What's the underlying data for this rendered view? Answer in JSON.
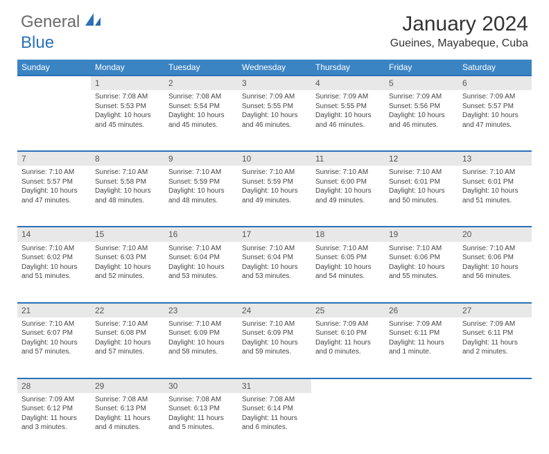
{
  "logo": {
    "general": "General",
    "blue": "Blue"
  },
  "title": "January 2024",
  "location": "Gueines, Mayabeque, Cuba",
  "weekdays": [
    "Sunday",
    "Monday",
    "Tuesday",
    "Wednesday",
    "Thursday",
    "Friday",
    "Saturday"
  ],
  "colors": {
    "header_bg": "#3b84c4",
    "daynum_bg": "#e8e8e8",
    "rule": "#2a71b8",
    "logo_gray": "#6a6a6a",
    "logo_blue": "#2a71b8"
  },
  "weeks": [
    [
      {
        "num": "",
        "sunrise": "",
        "sunset": "",
        "daylight": ""
      },
      {
        "num": "1",
        "sunrise": "Sunrise: 7:08 AM",
        "sunset": "Sunset: 5:53 PM",
        "daylight": "Daylight: 10 hours and 45 minutes."
      },
      {
        "num": "2",
        "sunrise": "Sunrise: 7:08 AM",
        "sunset": "Sunset: 5:54 PM",
        "daylight": "Daylight: 10 hours and 45 minutes."
      },
      {
        "num": "3",
        "sunrise": "Sunrise: 7:09 AM",
        "sunset": "Sunset: 5:55 PM",
        "daylight": "Daylight: 10 hours and 46 minutes."
      },
      {
        "num": "4",
        "sunrise": "Sunrise: 7:09 AM",
        "sunset": "Sunset: 5:55 PM",
        "daylight": "Daylight: 10 hours and 46 minutes."
      },
      {
        "num": "5",
        "sunrise": "Sunrise: 7:09 AM",
        "sunset": "Sunset: 5:56 PM",
        "daylight": "Daylight: 10 hours and 46 minutes."
      },
      {
        "num": "6",
        "sunrise": "Sunrise: 7:09 AM",
        "sunset": "Sunset: 5:57 PM",
        "daylight": "Daylight: 10 hours and 47 minutes."
      }
    ],
    [
      {
        "num": "7",
        "sunrise": "Sunrise: 7:10 AM",
        "sunset": "Sunset: 5:57 PM",
        "daylight": "Daylight: 10 hours and 47 minutes."
      },
      {
        "num": "8",
        "sunrise": "Sunrise: 7:10 AM",
        "sunset": "Sunset: 5:58 PM",
        "daylight": "Daylight: 10 hours and 48 minutes."
      },
      {
        "num": "9",
        "sunrise": "Sunrise: 7:10 AM",
        "sunset": "Sunset: 5:59 PM",
        "daylight": "Daylight: 10 hours and 48 minutes."
      },
      {
        "num": "10",
        "sunrise": "Sunrise: 7:10 AM",
        "sunset": "Sunset: 5:59 PM",
        "daylight": "Daylight: 10 hours and 49 minutes."
      },
      {
        "num": "11",
        "sunrise": "Sunrise: 7:10 AM",
        "sunset": "Sunset: 6:00 PM",
        "daylight": "Daylight: 10 hours and 49 minutes."
      },
      {
        "num": "12",
        "sunrise": "Sunrise: 7:10 AM",
        "sunset": "Sunset: 6:01 PM",
        "daylight": "Daylight: 10 hours and 50 minutes."
      },
      {
        "num": "13",
        "sunrise": "Sunrise: 7:10 AM",
        "sunset": "Sunset: 6:01 PM",
        "daylight": "Daylight: 10 hours and 51 minutes."
      }
    ],
    [
      {
        "num": "14",
        "sunrise": "Sunrise: 7:10 AM",
        "sunset": "Sunset: 6:02 PM",
        "daylight": "Daylight: 10 hours and 51 minutes."
      },
      {
        "num": "15",
        "sunrise": "Sunrise: 7:10 AM",
        "sunset": "Sunset: 6:03 PM",
        "daylight": "Daylight: 10 hours and 52 minutes."
      },
      {
        "num": "16",
        "sunrise": "Sunrise: 7:10 AM",
        "sunset": "Sunset: 6:04 PM",
        "daylight": "Daylight: 10 hours and 53 minutes."
      },
      {
        "num": "17",
        "sunrise": "Sunrise: 7:10 AM",
        "sunset": "Sunset: 6:04 PM",
        "daylight": "Daylight: 10 hours and 53 minutes."
      },
      {
        "num": "18",
        "sunrise": "Sunrise: 7:10 AM",
        "sunset": "Sunset: 6:05 PM",
        "daylight": "Daylight: 10 hours and 54 minutes."
      },
      {
        "num": "19",
        "sunrise": "Sunrise: 7:10 AM",
        "sunset": "Sunset: 6:06 PM",
        "daylight": "Daylight: 10 hours and 55 minutes."
      },
      {
        "num": "20",
        "sunrise": "Sunrise: 7:10 AM",
        "sunset": "Sunset: 6:06 PM",
        "daylight": "Daylight: 10 hours and 56 minutes."
      }
    ],
    [
      {
        "num": "21",
        "sunrise": "Sunrise: 7:10 AM",
        "sunset": "Sunset: 6:07 PM",
        "daylight": "Daylight: 10 hours and 57 minutes."
      },
      {
        "num": "22",
        "sunrise": "Sunrise: 7:10 AM",
        "sunset": "Sunset: 6:08 PM",
        "daylight": "Daylight: 10 hours and 57 minutes."
      },
      {
        "num": "23",
        "sunrise": "Sunrise: 7:10 AM",
        "sunset": "Sunset: 6:09 PM",
        "daylight": "Daylight: 10 hours and 58 minutes."
      },
      {
        "num": "24",
        "sunrise": "Sunrise: 7:10 AM",
        "sunset": "Sunset: 6:09 PM",
        "daylight": "Daylight: 10 hours and 59 minutes."
      },
      {
        "num": "25",
        "sunrise": "Sunrise: 7:09 AM",
        "sunset": "Sunset: 6:10 PM",
        "daylight": "Daylight: 11 hours and 0 minutes."
      },
      {
        "num": "26",
        "sunrise": "Sunrise: 7:09 AM",
        "sunset": "Sunset: 6:11 PM",
        "daylight": "Daylight: 11 hours and 1 minute."
      },
      {
        "num": "27",
        "sunrise": "Sunrise: 7:09 AM",
        "sunset": "Sunset: 6:11 PM",
        "daylight": "Daylight: 11 hours and 2 minutes."
      }
    ],
    [
      {
        "num": "28",
        "sunrise": "Sunrise: 7:09 AM",
        "sunset": "Sunset: 6:12 PM",
        "daylight": "Daylight: 11 hours and 3 minutes."
      },
      {
        "num": "29",
        "sunrise": "Sunrise: 7:08 AM",
        "sunset": "Sunset: 6:13 PM",
        "daylight": "Daylight: 11 hours and 4 minutes."
      },
      {
        "num": "30",
        "sunrise": "Sunrise: 7:08 AM",
        "sunset": "Sunset: 6:13 PM",
        "daylight": "Daylight: 11 hours and 5 minutes."
      },
      {
        "num": "31",
        "sunrise": "Sunrise: 7:08 AM",
        "sunset": "Sunset: 6:14 PM",
        "daylight": "Daylight: 11 hours and 6 minutes."
      },
      {
        "num": "",
        "sunrise": "",
        "sunset": "",
        "daylight": ""
      },
      {
        "num": "",
        "sunrise": "",
        "sunset": "",
        "daylight": ""
      },
      {
        "num": "",
        "sunrise": "",
        "sunset": "",
        "daylight": ""
      }
    ]
  ]
}
